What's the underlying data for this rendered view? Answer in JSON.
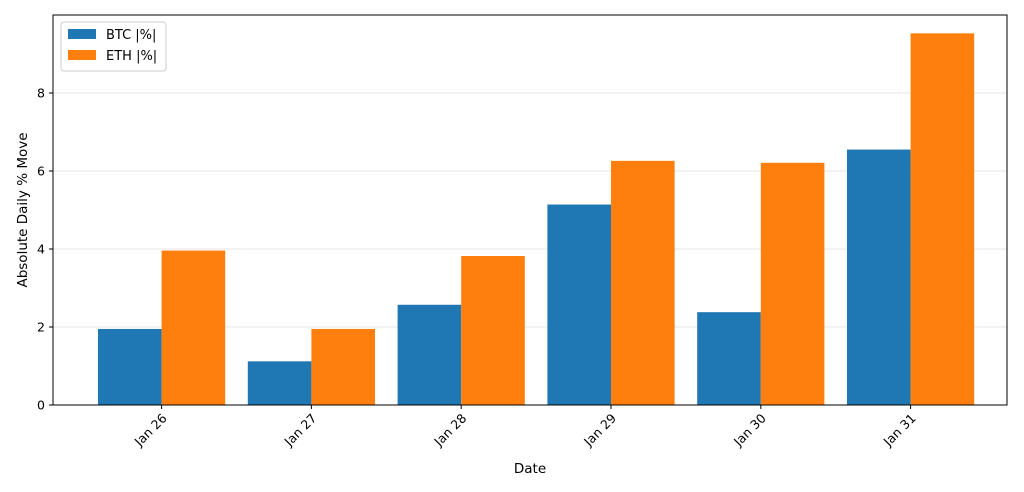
{
  "chart_data": {
    "type": "bar",
    "categories": [
      "Jan 26",
      "Jan 27",
      "Jan 28",
      "Jan 29",
      "Jan 30",
      "Jan 31"
    ],
    "series": [
      {
        "name": "BTC |%|",
        "color": "#1f77b4",
        "values": [
          1.95,
          1.12,
          2.57,
          5.14,
          2.38,
          6.55
        ]
      },
      {
        "name": "ETH |%|",
        "color": "#ff7f0e",
        "values": [
          3.96,
          1.95,
          3.82,
          6.26,
          6.21,
          9.53
        ]
      }
    ],
    "title": "",
    "xlabel": "Date",
    "ylabel": "Absolute Daily % Move",
    "ylim": [
      0,
      10
    ],
    "yticks": [
      0,
      2,
      4,
      6,
      8
    ],
    "grid": "horizontal",
    "legend_position": "top-left",
    "x_tick_rotation": "45deg"
  }
}
